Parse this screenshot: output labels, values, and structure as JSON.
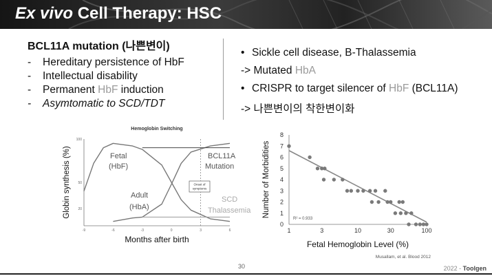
{
  "slide": {
    "title_italic": "Ex vivo",
    "title_rest": "Cell Therapy: HSC",
    "page_number": "30",
    "footer_year": "2022 - ",
    "footer_brand": "Toolgen"
  },
  "left": {
    "heading": "BCL11A mutation (나쁜변이)",
    "items": [
      {
        "pre": "Hereditary persistence of HbF",
        "hl": "",
        "post": ""
      },
      {
        "pre": "Intellectual disability",
        "hl": "",
        "post": ""
      },
      {
        "pre": "Permanent ",
        "hl": "HbF",
        "post": " induction"
      },
      {
        "pre": "Asymtomatic to SCD/TDT",
        "hl": "",
        "post": ""
      }
    ],
    "dash": "-"
  },
  "right": {
    "b1": "Sickle cell disease, B-Thalassemia",
    "a1_pre": "-> Mutated ",
    "a1_hl": "HbA",
    "b2_pre": "CRISPR to target silencer of ",
    "b2_hl": "HbF",
    "b2_post": " (BCL11A)",
    "a2": "-> 나쁜변이의 착한변이화",
    "bullet": "•"
  },
  "chart_data": [
    {
      "type": "line",
      "title": "Hemoglobin Switching",
      "xlabel": "Months after birth",
      "ylabel": "Globin synthesis (%)",
      "x_ticks": [
        "-9",
        "-6",
        "-3",
        "0",
        "3",
        "6"
      ],
      "y_ticks": [
        "100",
        "50",
        "20"
      ],
      "ylim": [
        0,
        100
      ],
      "series": [
        {
          "name": "Fetal (HbF)",
          "x": [
            -9,
            -8,
            -7,
            -6,
            -4,
            -3,
            -1,
            0,
            1,
            2,
            4,
            6
          ],
          "y": [
            40,
            72,
            90,
            95,
            92,
            88,
            70,
            50,
            30,
            18,
            8,
            5
          ]
        },
        {
          "name": "Adult (HbA)",
          "x": [
            -6,
            -5,
            -4,
            -3,
            -1,
            0,
            1,
            2,
            4,
            6
          ],
          "y": [
            5,
            7,
            9,
            10,
            25,
            48,
            72,
            85,
            92,
            95
          ]
        },
        {
          "name": "BCL11A Mutation",
          "x": [
            -3,
            0,
            3,
            6
          ],
          "y": [
            90,
            90,
            90,
            90
          ]
        },
        {
          "name": "SCD Thalassemia",
          "x": [
            -3,
            0,
            3,
            6
          ],
          "y": [
            10,
            10,
            10,
            10
          ]
        }
      ],
      "annotations": {
        "fetal_line1": "Fetal",
        "fetal_line2": "(HbF)",
        "adult_line1": "Adult",
        "adult_line2": "(HbA)",
        "bcl_line1": "BCL11A",
        "bcl_line2": "Mutation",
        "scd_line1": "SCD",
        "scd_line2": "Thalassemia",
        "onset_line1": "Onset of",
        "onset_line2": "symptoms"
      }
    },
    {
      "type": "scatter",
      "xlabel": "Fetal Hemoglobin Level (%)",
      "ylabel": "Number of Morbidities",
      "x_scale": "log",
      "x_ticks": [
        1,
        3,
        10,
        30,
        100
      ],
      "y_ticks": [
        0,
        1,
        2,
        3,
        4,
        5,
        6,
        7,
        8
      ],
      "ylim": [
        0,
        8
      ],
      "r2": "R² = 0.933",
      "source": "Musallam, et al. Blood 2012",
      "points": [
        {
          "x": 1,
          "y": 7
        },
        {
          "x": 2,
          "y": 6
        },
        {
          "x": 2.6,
          "y": 5
        },
        {
          "x": 3,
          "y": 5
        },
        {
          "x": 3.3,
          "y": 5
        },
        {
          "x": 3.2,
          "y": 4
        },
        {
          "x": 4.5,
          "y": 4
        },
        {
          "x": 6,
          "y": 4
        },
        {
          "x": 7,
          "y": 3
        },
        {
          "x": 8,
          "y": 3
        },
        {
          "x": 10,
          "y": 3
        },
        {
          "x": 12,
          "y": 3
        },
        {
          "x": 15,
          "y": 3
        },
        {
          "x": 18,
          "y": 3
        },
        {
          "x": 16,
          "y": 2
        },
        {
          "x": 20,
          "y": 2
        },
        {
          "x": 25,
          "y": 3
        },
        {
          "x": 27,
          "y": 2
        },
        {
          "x": 30,
          "y": 2
        },
        {
          "x": 35,
          "y": 1
        },
        {
          "x": 40,
          "y": 2
        },
        {
          "x": 42,
          "y": 1
        },
        {
          "x": 45,
          "y": 2
        },
        {
          "x": 50,
          "y": 1
        },
        {
          "x": 55,
          "y": 0
        },
        {
          "x": 60,
          "y": 1
        },
        {
          "x": 70,
          "y": 0
        },
        {
          "x": 80,
          "y": 0
        },
        {
          "x": 90,
          "y": 0
        },
        {
          "x": 100,
          "y": 0
        }
      ],
      "trend": {
        "x": [
          1,
          100
        ],
        "y": [
          6.6,
          0.2
        ]
      }
    }
  ]
}
